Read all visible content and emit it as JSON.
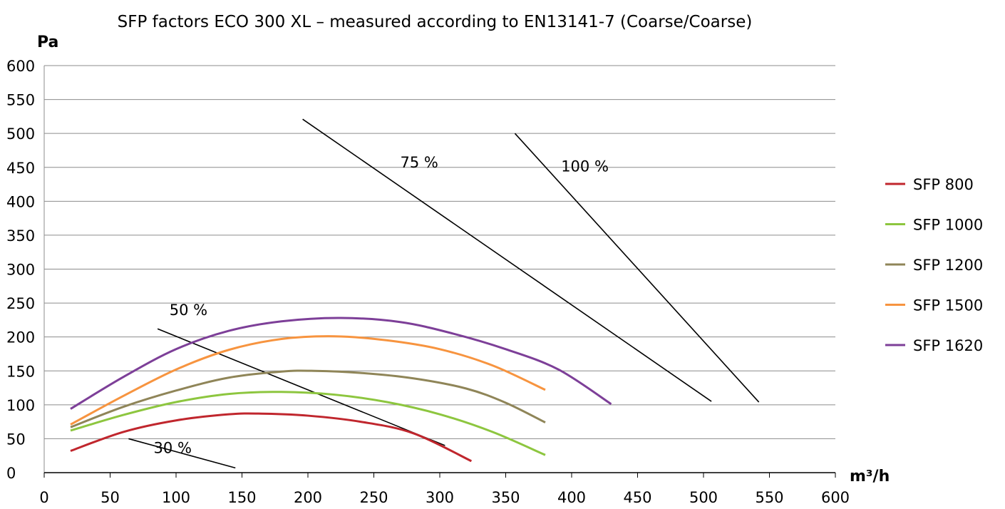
{
  "chart_data": {
    "type": "line",
    "title": "SFP factors ECO 300 XL – measured according to EN13141-7 (Coarse/Coarse)",
    "ylabel": "Pa",
    "xlabel": "m³/h",
    "xlim": [
      0,
      600
    ],
    "ylim": [
      0,
      600
    ],
    "x_ticks": [
      0,
      50,
      100,
      150,
      200,
      250,
      300,
      350,
      400,
      450,
      500,
      550,
      600
    ],
    "y_ticks": [
      0,
      50,
      100,
      150,
      200,
      250,
      300,
      350,
      400,
      450,
      500,
      550,
      600
    ],
    "grid": true,
    "legend_position": "right",
    "series": [
      {
        "name": "SFP 800",
        "color": "#c0262d",
        "points": [
          [
            20,
            32
          ],
          [
            60,
            60
          ],
          [
            100,
            77
          ],
          [
            140,
            86
          ],
          [
            165,
            87
          ],
          [
            200,
            84
          ],
          [
            240,
            75
          ],
          [
            280,
            58
          ],
          [
            324,
            17
          ]
        ]
      },
      {
        "name": "SFP 1000",
        "color": "#8dc63f",
        "points": [
          [
            20,
            62
          ],
          [
            60,
            85
          ],
          [
            100,
            104
          ],
          [
            140,
            116
          ],
          [
            180,
            119
          ],
          [
            220,
            115
          ],
          [
            260,
            104
          ],
          [
            300,
            86
          ],
          [
            340,
            60
          ],
          [
            380,
            26
          ]
        ]
      },
      {
        "name": "SFP 1200",
        "color": "#8f8558",
        "points": [
          [
            20,
            67
          ],
          [
            60,
            97
          ],
          [
            100,
            121
          ],
          [
            140,
            140
          ],
          [
            180,
            149
          ],
          [
            205,
            150
          ],
          [
            240,
            147
          ],
          [
            280,
            139
          ],
          [
            320,
            124
          ],
          [
            350,
            103
          ],
          [
            380,
            74
          ]
        ]
      },
      {
        "name": "SFP 1500",
        "color": "#f7943f",
        "points": [
          [
            20,
            71
          ],
          [
            60,
            113
          ],
          [
            100,
            152
          ],
          [
            140,
            181
          ],
          [
            180,
            197
          ],
          [
            220,
            201
          ],
          [
            260,
            195
          ],
          [
            300,
            182
          ],
          [
            340,
            158
          ],
          [
            380,
            122
          ]
        ]
      },
      {
        "name": "SFP 1620",
        "color": "#7d3f98",
        "points": [
          [
            20,
            94
          ],
          [
            60,
            141
          ],
          [
            100,
            182
          ],
          [
            140,
            209
          ],
          [
            180,
            223
          ],
          [
            225,
            228
          ],
          [
            270,
            222
          ],
          [
            310,
            205
          ],
          [
            350,
            182
          ],
          [
            390,
            152
          ],
          [
            430,
            101
          ]
        ]
      }
    ],
    "operating_lines": [
      {
        "label": "30 %",
        "points": [
          [
            64,
            50
          ],
          [
            145,
            7
          ]
        ],
        "label_at": [
          83,
          29
        ]
      },
      {
        "label": "50 %",
        "points": [
          [
            86,
            212
          ],
          [
            304,
            40
          ]
        ],
        "label_at": [
          95,
          232
        ]
      },
      {
        "label": "75 %",
        "points": [
          [
            196,
            521
          ],
          [
            506,
            105
          ]
        ],
        "label_at": [
          270,
          450
        ]
      },
      {
        "label": "100 %",
        "points": [
          [
            357,
            500
          ],
          [
            542,
            104
          ]
        ],
        "label_at": [
          392,
          444
        ]
      }
    ]
  }
}
